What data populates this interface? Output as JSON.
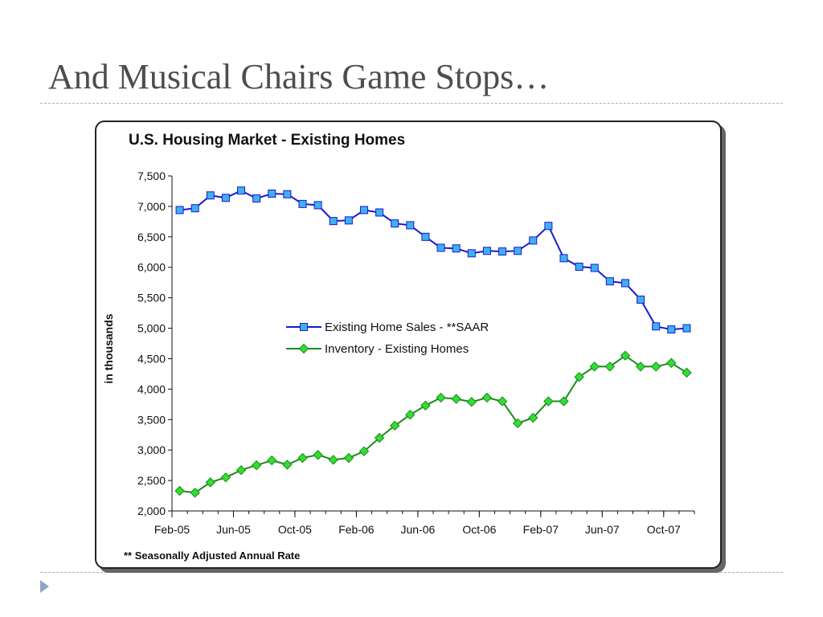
{
  "slide": {
    "title": "And Musical Chairs Game Stops…"
  },
  "chart_data": {
    "type": "line",
    "title": "U.S. Housing Market - Existing Homes",
    "ylabel": "in thousands",
    "xlabel": "",
    "footnote": "** Seasonally Adjusted Annual Rate",
    "ylim": [
      2000,
      7500
    ],
    "yticks": [
      "2,000",
      "2,500",
      "3,000",
      "3,500",
      "4,000",
      "4,500",
      "5,000",
      "5,500",
      "6,000",
      "6,500",
      "7,000",
      "7,500"
    ],
    "x": [
      "Feb-05",
      "Mar-05",
      "Apr-05",
      "May-05",
      "Jun-05",
      "Jul-05",
      "Aug-05",
      "Sep-05",
      "Oct-05",
      "Nov-05",
      "Dec-05",
      "Jan-06",
      "Feb-06",
      "Mar-06",
      "Apr-06",
      "May-06",
      "Jun-06",
      "Jul-06",
      "Aug-06",
      "Sep-06",
      "Oct-06",
      "Nov-06",
      "Dec-06",
      "Jan-07",
      "Feb-07",
      "Mar-07",
      "Apr-07",
      "May-07",
      "Jun-07",
      "Jul-07",
      "Aug-07",
      "Sep-07",
      "Oct-07",
      "Nov-07"
    ],
    "xtick_labels": [
      "Feb-05",
      "Jun-05",
      "Oct-05",
      "Feb-06",
      "Jun-06",
      "Oct-06",
      "Feb-07",
      "Jun-07",
      "Oct-07"
    ],
    "legend_position": "center",
    "grid": false,
    "series": [
      {
        "name": "Existing Home Sales - **SAAR",
        "color": "#1a1ad0",
        "marker_color": "#3fb0f0",
        "marker": "square",
        "values": [
          6940,
          6970,
          7180,
          7140,
          7260,
          7130,
          7210,
          7200,
          7040,
          7020,
          6760,
          6770,
          6940,
          6900,
          6720,
          6690,
          6500,
          6320,
          6310,
          6230,
          6270,
          6260,
          6270,
          6440,
          6680,
          6150,
          6010,
          5990,
          5770,
          5740,
          5470,
          5030,
          4980,
          5000
        ]
      },
      {
        "name": "Inventory - Existing Homes",
        "color": "#1a8a1a",
        "marker_color": "#33dd33",
        "marker": "diamond",
        "values": [
          2330,
          2300,
          2470,
          2550,
          2670,
          2750,
          2830,
          2760,
          2870,
          2920,
          2840,
          2870,
          2980,
          3200,
          3400,
          3580,
          3730,
          3860,
          3840,
          3790,
          3860,
          3800,
          3440,
          3530,
          3800,
          3800,
          4200,
          4370,
          4370,
          4550,
          4370,
          4370,
          4430,
          4270
        ]
      }
    ]
  }
}
